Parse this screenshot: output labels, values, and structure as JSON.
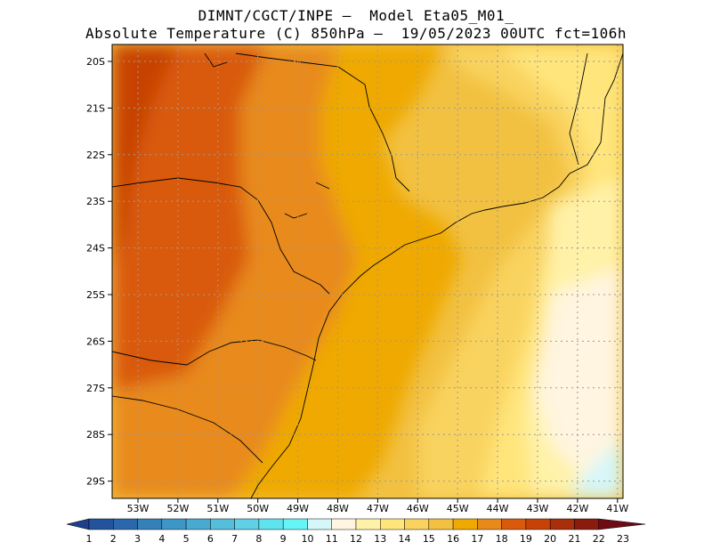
{
  "title": {
    "line1": "DIMNT/CGCT/INPE –  Model Eta05_M01_",
    "line2": "Absolute Temperature (C) 850hPa –  19/05/2023 00UTC fct=106h"
  },
  "map": {
    "lat_labels": [
      "20S",
      "21S",
      "22S",
      "23S",
      "24S",
      "25S",
      "26S",
      "27S",
      "28S",
      "29S"
    ],
    "lon_labels": [
      "53W",
      "52W",
      "51W",
      "50W",
      "49W",
      "48W",
      "47W",
      "46W",
      "45W",
      "44W",
      "43W",
      "42W",
      "41W"
    ]
  },
  "colorbar": {
    "labels": [
      "1",
      "2",
      "3",
      "4",
      "5",
      "6",
      "7",
      "8",
      "9",
      "10",
      "11",
      "12",
      "13",
      "14",
      "15",
      "16",
      "17",
      "18",
      "19",
      "20",
      "21",
      "22",
      "23"
    ],
    "colors": [
      "#1e3f8c",
      "#23539b",
      "#2b68ab",
      "#3481ba",
      "#3d96c6",
      "#49aad1",
      "#56bedb",
      "#5fd0e6",
      "#5fe3ef",
      "#66f5f7",
      "#d6f7f9",
      "#fff5e0",
      "#fff2a8",
      "#ffe57c",
      "#f9d35e",
      "#f2c141",
      "#efa900",
      "#e88a1a",
      "#d95a0a",
      "#c74206",
      "#a92e0a",
      "#8a1c0e",
      "#6e0b14"
    ]
  }
}
